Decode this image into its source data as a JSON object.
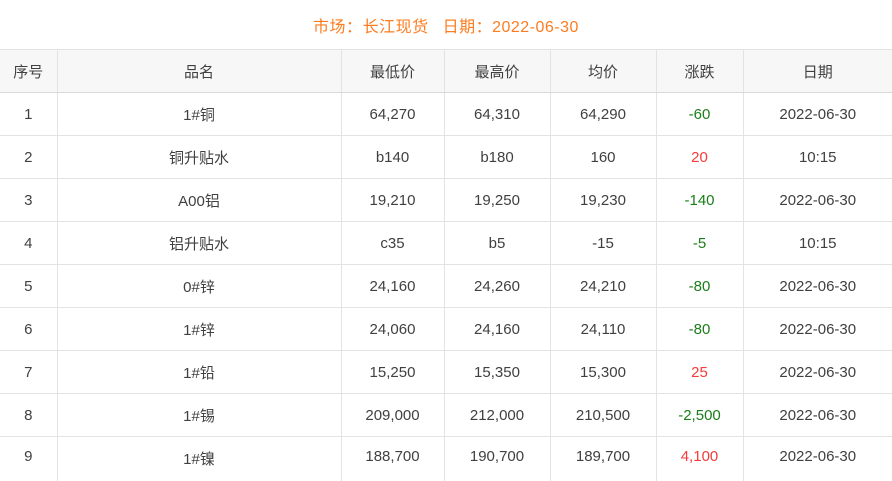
{
  "title": {
    "market_label": "市场：",
    "market_value": "长江现货",
    "date_label": "日期：",
    "date_value": "2022-06-30"
  },
  "colors": {
    "accent_orange": "#fd7c1f",
    "up_red": "#f53b3b",
    "down_green": "#1a7d1a",
    "header_bg": "#f7f7f7",
    "border": "#e3e3e3",
    "text": "#404040"
  },
  "table": {
    "columns": [
      "序号",
      "品名",
      "最低价",
      "最高价",
      "均价",
      "涨跌",
      "日期"
    ],
    "rows": [
      {
        "seq": "1",
        "name": "1#铜",
        "low": "64,270",
        "high": "64,310",
        "avg": "64,290",
        "change": "-60",
        "trend": "down",
        "date": "2022-06-30"
      },
      {
        "seq": "2",
        "name": "铜升贴水",
        "low": "b140",
        "high": "b180",
        "avg": "160",
        "change": "20",
        "trend": "up",
        "date": "10:15"
      },
      {
        "seq": "3",
        "name": "A00铝",
        "low": "19,210",
        "high": "19,250",
        "avg": "19,230",
        "change": "-140",
        "trend": "down",
        "date": "2022-06-30"
      },
      {
        "seq": "4",
        "name": "铝升贴水",
        "low": "c35",
        "high": "b5",
        "avg": "-15",
        "change": "-5",
        "trend": "down",
        "date": "10:15"
      },
      {
        "seq": "5",
        "name": "0#锌",
        "low": "24,160",
        "high": "24,260",
        "avg": "24,210",
        "change": "-80",
        "trend": "down",
        "date": "2022-06-30"
      },
      {
        "seq": "6",
        "name": "1#锌",
        "low": "24,060",
        "high": "24,160",
        "avg": "24,110",
        "change": "-80",
        "trend": "down",
        "date": "2022-06-30"
      },
      {
        "seq": "7",
        "name": "1#铅",
        "low": "15,250",
        "high": "15,350",
        "avg": "15,300",
        "change": "25",
        "trend": "up",
        "date": "2022-06-30"
      },
      {
        "seq": "8",
        "name": "1#锡",
        "low": "209,000",
        "high": "212,000",
        "avg": "210,500",
        "change": "-2,500",
        "trend": "down",
        "date": "2022-06-30"
      },
      {
        "seq": "9",
        "name": "1#镍",
        "low": "188,700",
        "high": "190,700",
        "avg": "189,700",
        "change": "4,100",
        "trend": "up",
        "date": "2022-06-30"
      }
    ]
  }
}
